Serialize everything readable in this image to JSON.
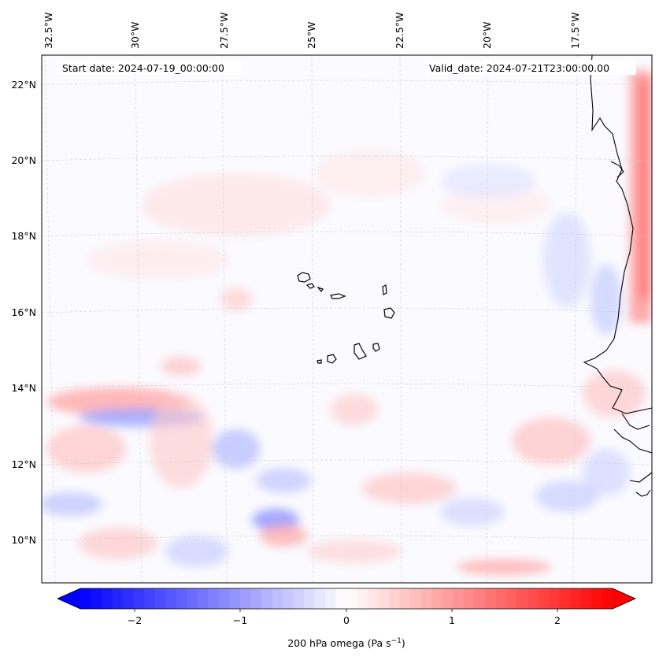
{
  "map": {
    "start_date_text": "Start date: 2024-07-19_00:00:00",
    "valid_date_text": "Valid_date: 2024-07-21T23:00:00.00",
    "lon_labels": [
      "32.5°W",
      "30°W",
      "27.5°W",
      "25°W",
      "22.5°W",
      "20°W",
      "17.5°W"
    ],
    "lat_labels": [
      "22°N",
      "20°N",
      "18°N",
      "16°N",
      "14°N",
      "12°N",
      "10°N"
    ],
    "colorbar": {
      "ticks": [
        "−2",
        "−1",
        "0",
        "1",
        "2"
      ],
      "label_main": "200 hPa omega (Pa s",
      "label_sup": "−1",
      "label_close": ")",
      "vmin": -2.6,
      "vmax": 2.6,
      "colors": {
        "neg": "#0000ff",
        "mid": "#ffffff",
        "pos": "#ff0000"
      }
    },
    "colors": {
      "coastline": "#000000",
      "gridline": "#cccccc"
    }
  }
}
